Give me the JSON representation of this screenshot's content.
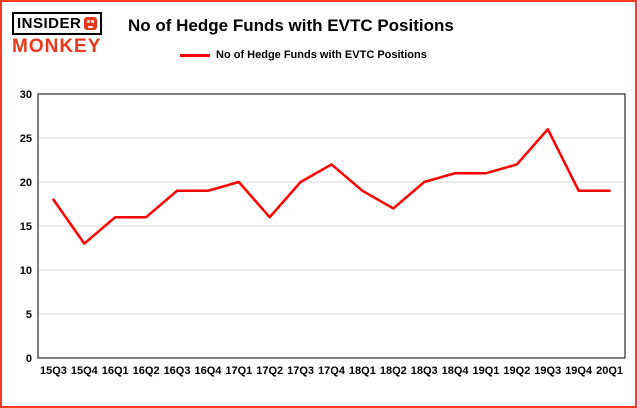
{
  "logo": {
    "line1": "INSIDER",
    "line2": "MONKEY"
  },
  "header": {
    "title": "No of Hedge Funds with EVTC Positions"
  },
  "legend": {
    "label": "No of Hedge Funds with EVTC Positions",
    "color": "#ff0000"
  },
  "chart_data": {
    "type": "line",
    "title": "No of Hedge Funds with EVTC Positions",
    "categories": [
      "15Q3",
      "15Q4",
      "16Q1",
      "16Q2",
      "16Q3",
      "16Q4",
      "17Q1",
      "17Q2",
      "17Q3",
      "17Q4",
      "18Q1",
      "18Q2",
      "18Q3",
      "18Q4",
      "19Q1",
      "19Q2",
      "19Q3",
      "19Q4",
      "20Q1"
    ],
    "values": [
      18,
      13,
      16,
      16,
      19,
      19,
      20,
      16,
      20,
      22,
      19,
      17,
      20,
      21,
      21,
      22,
      26,
      19,
      19
    ],
    "series_name": "No of Hedge Funds with EVTC Positions",
    "xlabel": "",
    "ylabel": "",
    "ylim": [
      0,
      30
    ],
    "yticks": [
      0,
      5,
      10,
      15,
      20,
      25,
      30
    ],
    "grid": true,
    "legend_position": "top-left",
    "line_color": "#ff0000"
  },
  "colors": {
    "frame_border": "#ff3b1f",
    "logo_red": "#e8391d",
    "line": "#ff0000",
    "grid": "#d9d9d9",
    "axis": "#000000",
    "background": "#ffffff"
  }
}
